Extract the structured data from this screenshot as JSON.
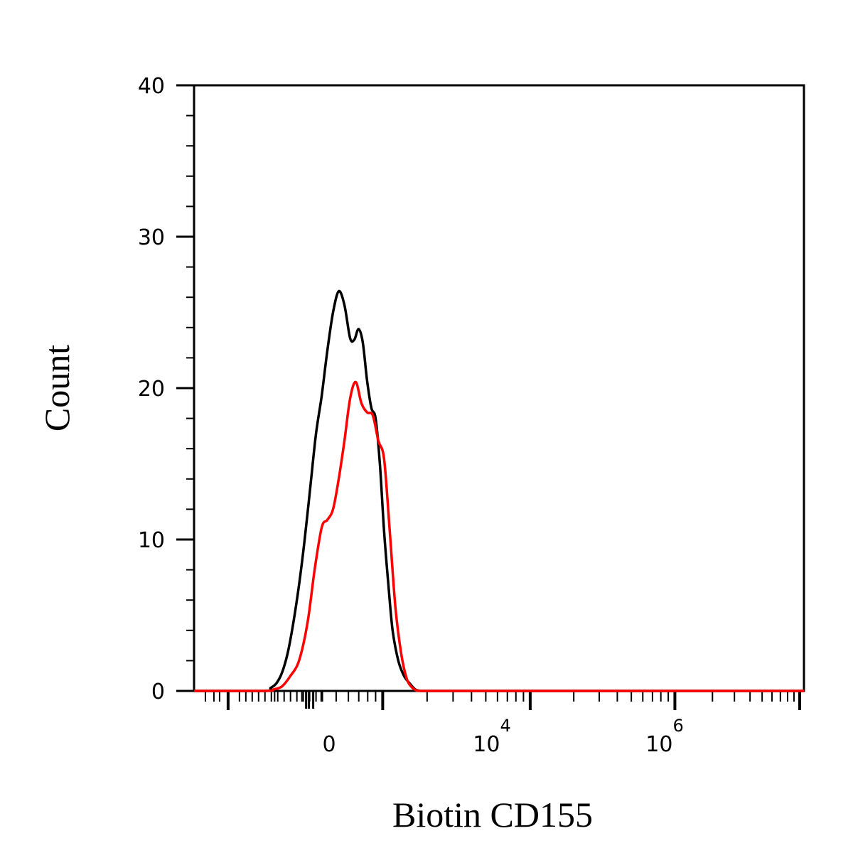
{
  "chart_data": {
    "type": "line",
    "title": "",
    "xlabel": "Biotin CD155",
    "ylabel": "Count",
    "yscale": "linear",
    "xscale": "biexponential",
    "ylim": [
      0,
      40
    ],
    "y_ticks": [
      0,
      10,
      20,
      30,
      40
    ],
    "x_tick_labels": [
      {
        "base": "0",
        "exp": ""
      },
      {
        "base": "10",
        "exp": "4"
      },
      {
        "base": "10",
        "exp": "6"
      }
    ],
    "grid": false,
    "legend": "none",
    "series": [
      {
        "color": "#000000",
        "x": [
          -0.5,
          -0.46,
          -0.42,
          -0.38,
          -0.34,
          -0.3,
          -0.26,
          -0.22,
          -0.18,
          -0.14,
          -0.1,
          -0.06,
          -0.02,
          0.02,
          0.06,
          0.1,
          0.13,
          0.16,
          0.19,
          0.22,
          0.25,
          0.28,
          0.31,
          0.34,
          0.37,
          0.4,
          0.44,
          0.48,
          0.52,
          0.56,
          0.6,
          0.64,
          0.68,
          0.72,
          0.76,
          0.8,
          0.85,
          0.9,
          0.95,
          1.0
        ],
        "y": [
          0,
          0.2,
          0.5,
          1.2,
          2.5,
          4.5,
          7,
          10,
          13.5,
          17,
          19.5,
          22.5,
          25,
          26.4,
          25.5,
          23.3,
          23.2,
          23.9,
          23,
          20.5,
          18.7,
          18,
          15,
          10.5,
          7,
          4,
          2,
          1,
          0.5,
          0.1,
          0,
          0,
          0,
          0,
          0,
          0,
          0,
          0,
          0,
          0
        ]
      },
      {
        "color": "#ff0000",
        "x": [
          -0.5,
          -0.44,
          -0.38,
          -0.32,
          -0.26,
          -0.2,
          -0.15,
          -0.1,
          -0.06,
          -0.02,
          0.02,
          0.06,
          0.1,
          0.14,
          0.18,
          0.22,
          0.26,
          0.3,
          0.34,
          0.38,
          0.42,
          0.46,
          0.5,
          0.54,
          0.58,
          0.62,
          0.66,
          0.7,
          0.74,
          0.78,
          0.82,
          0.86,
          0.9,
          0.95,
          1.0
        ],
        "y": [
          0,
          0.1,
          0.3,
          1,
          2,
          4.5,
          8,
          10.8,
          11.3,
          12,
          14,
          16.5,
          19.3,
          20.4,
          19,
          18.4,
          18.2,
          16.5,
          15.3,
          10.5,
          5.5,
          2.5,
          0.8,
          0.2,
          0,
          0,
          0,
          0,
          0,
          0,
          0,
          0,
          0,
          0,
          0
        ]
      }
    ]
  }
}
